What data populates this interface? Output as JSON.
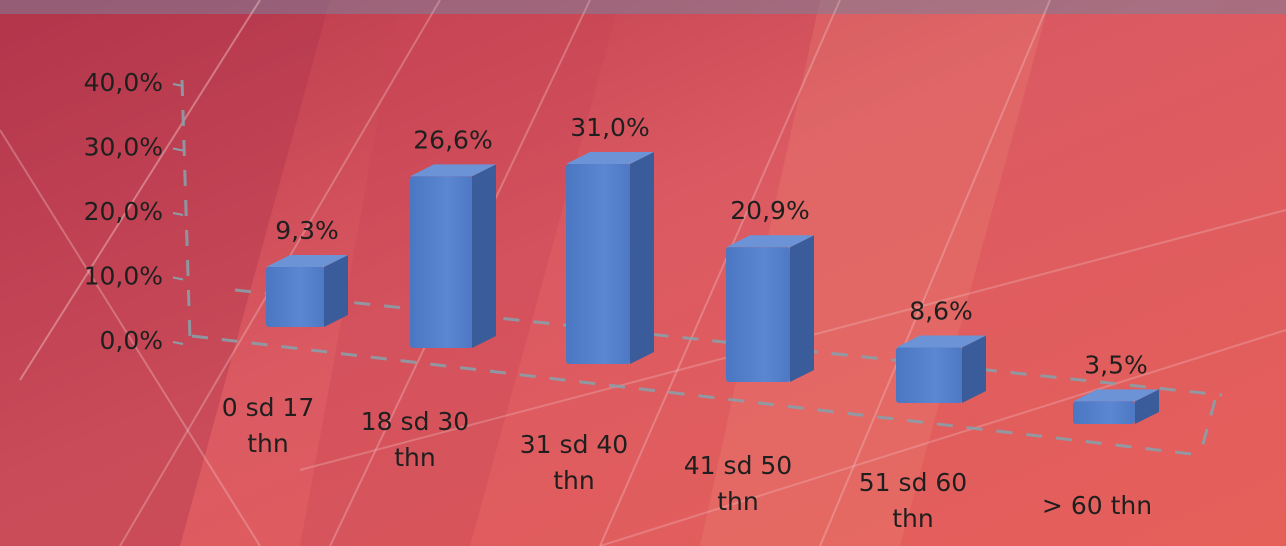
{
  "chart_data": {
    "type": "bar",
    "categories": [
      [
        "0 sd 17",
        "thn"
      ],
      [
        "18 sd 30",
        "thn"
      ],
      [
        "31 sd 40",
        "thn"
      ],
      [
        "41 sd 50",
        "thn"
      ],
      [
        "51 sd 60",
        "thn"
      ],
      [
        "> 60 thn"
      ]
    ],
    "values": [
      9.3,
      26.6,
      31.0,
      20.9,
      8.6,
      3.5
    ],
    "value_labels": [
      "9,3%",
      "26,6%",
      "31,0%",
      "20,9%",
      "8,6%",
      "3,5%"
    ],
    "yticks": [
      "0,0%",
      "10,0%",
      "20,0%",
      "30,0%",
      "40,0%"
    ],
    "ylim": [
      0,
      40
    ],
    "title": "",
    "xlabel": "",
    "ylabel": "",
    "style": "3d-column",
    "colors": {
      "bar_front": "#5580cc",
      "bar_side": "#3a5c9a",
      "bar_top": "#6b93d6",
      "background": "#d24a55",
      "gridline": "#8a9ea8"
    }
  }
}
